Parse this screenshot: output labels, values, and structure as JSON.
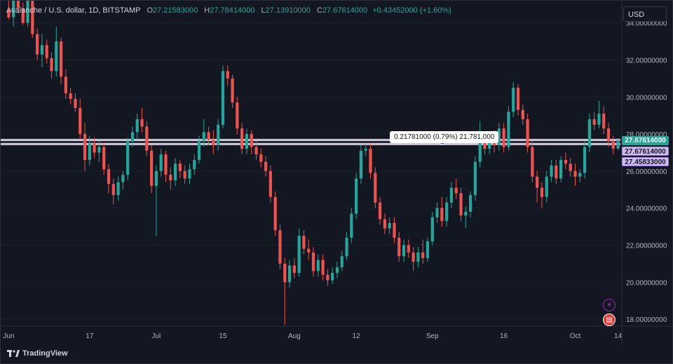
{
  "legend": {
    "symbol": "Avalanche / U.S. dollar, 1D, BITSTAMP",
    "open_label": "O",
    "open": "27.21583000",
    "high_label": "H",
    "high": "27.78414000",
    "low_label": "L",
    "low": "27.13910000",
    "close_label": "C",
    "close": "27.67614000",
    "change": "+0.43452000 (+1.60%)"
  },
  "currency": "USD",
  "price_tags": {
    "last": "27.67614000",
    "line_a": "27.67614000",
    "line_b": "27.45833000"
  },
  "measure_label": "0.21781000 (0.79%) 21,781,000",
  "branding": "TradingView",
  "colors": {
    "up": "#26a69a",
    "down": "#ef5350",
    "line": "#b39ddb",
    "background": "#131722"
  },
  "icons": [
    "tradingview-logo-icon",
    "flash-icon",
    "us-flag-icon"
  ],
  "chart_data": {
    "type": "candlestick",
    "x_ticks": [
      "Jun",
      "17",
      "Jul",
      "15",
      "Aug",
      "12",
      "Sep",
      "16",
      "Oct",
      "14"
    ],
    "y_ticks": [
      "34.00000000",
      "32.00000000",
      "30.00000000",
      "28.00000000",
      "26.00000000",
      "24.00000000",
      "22.00000000",
      "20.00000000",
      "18.00000000"
    ],
    "y_range": [
      17.7,
      35.2
    ],
    "horizontal_lines": [
      27.67614,
      27.45833
    ],
    "candles": [
      {
        "o": 34.7,
        "h": 36.2,
        "l": 34.2,
        "c": 34.3
      },
      {
        "o": 34.3,
        "h": 35.5,
        "l": 33.8,
        "c": 35.2
      },
      {
        "o": 35.2,
        "h": 36.0,
        "l": 34.5,
        "c": 34.8
      },
      {
        "o": 34.8,
        "h": 35.1,
        "l": 33.9,
        "c": 34.0
      },
      {
        "o": 34.0,
        "h": 35.4,
        "l": 33.8,
        "c": 35.3
      },
      {
        "o": 35.3,
        "h": 35.6,
        "l": 33.2,
        "c": 33.4
      },
      {
        "o": 33.4,
        "h": 33.7,
        "l": 32.0,
        "c": 32.3
      },
      {
        "o": 32.3,
        "h": 33.4,
        "l": 31.6,
        "c": 32.8
      },
      {
        "o": 32.8,
        "h": 33.1,
        "l": 31.8,
        "c": 32.1
      },
      {
        "o": 32.1,
        "h": 32.4,
        "l": 31.0,
        "c": 31.4
      },
      {
        "o": 31.4,
        "h": 33.8,
        "l": 31.1,
        "c": 33.0
      },
      {
        "o": 33.0,
        "h": 33.2,
        "l": 30.7,
        "c": 31.1
      },
      {
        "o": 31.1,
        "h": 31.5,
        "l": 29.9,
        "c": 30.2
      },
      {
        "o": 30.2,
        "h": 30.5,
        "l": 29.6,
        "c": 29.9
      },
      {
        "o": 29.9,
        "h": 30.2,
        "l": 29.2,
        "c": 29.4
      },
      {
        "o": 29.4,
        "h": 29.9,
        "l": 27.7,
        "c": 28.0
      },
      {
        "o": 28.0,
        "h": 28.6,
        "l": 26.0,
        "c": 26.6
      },
      {
        "o": 26.6,
        "h": 27.9,
        "l": 26.3,
        "c": 27.5
      },
      {
        "o": 27.5,
        "h": 27.8,
        "l": 26.7,
        "c": 27.0
      },
      {
        "o": 27.0,
        "h": 27.6,
        "l": 26.5,
        "c": 27.3
      },
      {
        "o": 27.3,
        "h": 27.5,
        "l": 25.8,
        "c": 26.1
      },
      {
        "o": 26.1,
        "h": 26.4,
        "l": 24.8,
        "c": 25.3
      },
      {
        "o": 25.3,
        "h": 25.6,
        "l": 24.2,
        "c": 24.7
      },
      {
        "o": 24.7,
        "h": 25.7,
        "l": 24.4,
        "c": 25.4
      },
      {
        "o": 25.4,
        "h": 26.0,
        "l": 25.0,
        "c": 25.8
      },
      {
        "o": 25.8,
        "h": 27.8,
        "l": 25.5,
        "c": 27.6
      },
      {
        "o": 27.6,
        "h": 28.4,
        "l": 27.3,
        "c": 28.1
      },
      {
        "o": 28.1,
        "h": 29.1,
        "l": 27.7,
        "c": 28.8
      },
      {
        "o": 28.8,
        "h": 29.4,
        "l": 28.1,
        "c": 28.4
      },
      {
        "o": 28.4,
        "h": 28.7,
        "l": 26.8,
        "c": 27.1
      },
      {
        "o": 27.1,
        "h": 27.4,
        "l": 24.8,
        "c": 25.2
      },
      {
        "o": 25.2,
        "h": 26.3,
        "l": 22.5,
        "c": 26.0
      },
      {
        "o": 26.0,
        "h": 27.2,
        "l": 25.7,
        "c": 26.9
      },
      {
        "o": 26.9,
        "h": 27.1,
        "l": 25.4,
        "c": 25.8
      },
      {
        "o": 25.8,
        "h": 26.2,
        "l": 25.0,
        "c": 25.5
      },
      {
        "o": 25.5,
        "h": 26.7,
        "l": 25.2,
        "c": 26.4
      },
      {
        "o": 26.4,
        "h": 26.6,
        "l": 25.6,
        "c": 26.0
      },
      {
        "o": 26.0,
        "h": 26.3,
        "l": 25.3,
        "c": 25.6
      },
      {
        "o": 25.6,
        "h": 26.4,
        "l": 25.3,
        "c": 26.1
      },
      {
        "o": 26.1,
        "h": 26.9,
        "l": 25.8,
        "c": 26.6
      },
      {
        "o": 26.6,
        "h": 27.9,
        "l": 26.4,
        "c": 27.6
      },
      {
        "o": 27.6,
        "h": 28.8,
        "l": 27.3,
        "c": 28.1
      },
      {
        "o": 28.1,
        "h": 28.4,
        "l": 27.4,
        "c": 27.7
      },
      {
        "o": 27.7,
        "h": 28.2,
        "l": 26.9,
        "c": 27.4
      },
      {
        "o": 27.4,
        "h": 28.8,
        "l": 27.1,
        "c": 28.5
      },
      {
        "o": 28.5,
        "h": 31.7,
        "l": 28.3,
        "c": 31.4
      },
      {
        "o": 31.4,
        "h": 31.7,
        "l": 30.6,
        "c": 31.0
      },
      {
        "o": 31.0,
        "h": 31.2,
        "l": 29.4,
        "c": 29.7
      },
      {
        "o": 29.7,
        "h": 30.0,
        "l": 28.0,
        "c": 28.3
      },
      {
        "o": 28.3,
        "h": 28.6,
        "l": 26.9,
        "c": 27.2
      },
      {
        "o": 27.2,
        "h": 28.3,
        "l": 26.9,
        "c": 28.0
      },
      {
        "o": 28.0,
        "h": 28.2,
        "l": 26.9,
        "c": 27.3
      },
      {
        "o": 27.3,
        "h": 27.6,
        "l": 26.6,
        "c": 26.9
      },
      {
        "o": 26.9,
        "h": 27.2,
        "l": 26.2,
        "c": 26.5
      },
      {
        "o": 26.5,
        "h": 26.8,
        "l": 25.7,
        "c": 26.0
      },
      {
        "o": 26.0,
        "h": 26.3,
        "l": 24.3,
        "c": 24.6
      },
      {
        "o": 24.6,
        "h": 24.9,
        "l": 22.5,
        "c": 22.8
      },
      {
        "o": 22.8,
        "h": 23.1,
        "l": 20.7,
        "c": 21.0
      },
      {
        "o": 21.0,
        "h": 21.3,
        "l": 17.7,
        "c": 20.0
      },
      {
        "o": 20.0,
        "h": 21.2,
        "l": 19.7,
        "c": 20.9
      },
      {
        "o": 20.9,
        "h": 21.3,
        "l": 20.2,
        "c": 20.5
      },
      {
        "o": 20.5,
        "h": 22.9,
        "l": 20.3,
        "c": 22.5
      },
      {
        "o": 22.5,
        "h": 22.8,
        "l": 21.5,
        "c": 21.8
      },
      {
        "o": 21.8,
        "h": 22.3,
        "l": 21.2,
        "c": 21.6
      },
      {
        "o": 21.6,
        "h": 21.9,
        "l": 20.3,
        "c": 20.6
      },
      {
        "o": 20.6,
        "h": 21.5,
        "l": 20.3,
        "c": 21.2
      },
      {
        "o": 21.2,
        "h": 21.5,
        "l": 20.1,
        "c": 20.4
      },
      {
        "o": 20.4,
        "h": 20.7,
        "l": 19.8,
        "c": 20.1
      },
      {
        "o": 20.1,
        "h": 20.8,
        "l": 19.9,
        "c": 20.5
      },
      {
        "o": 20.5,
        "h": 21.1,
        "l": 20.2,
        "c": 20.8
      },
      {
        "o": 20.8,
        "h": 21.7,
        "l": 20.6,
        "c": 21.4
      },
      {
        "o": 21.4,
        "h": 22.7,
        "l": 21.2,
        "c": 22.4
      },
      {
        "o": 22.4,
        "h": 24.0,
        "l": 22.1,
        "c": 23.7
      },
      {
        "o": 23.7,
        "h": 25.9,
        "l": 23.4,
        "c": 25.6
      },
      {
        "o": 25.6,
        "h": 27.4,
        "l": 25.3,
        "c": 27.1
      },
      {
        "o": 27.1,
        "h": 27.5,
        "l": 26.8,
        "c": 27.2
      },
      {
        "o": 27.2,
        "h": 27.5,
        "l": 25.6,
        "c": 25.9
      },
      {
        "o": 25.9,
        "h": 26.2,
        "l": 24.0,
        "c": 24.3
      },
      {
        "o": 24.3,
        "h": 24.6,
        "l": 23.1,
        "c": 23.4
      },
      {
        "o": 23.4,
        "h": 23.7,
        "l": 22.6,
        "c": 22.9
      },
      {
        "o": 22.9,
        "h": 23.5,
        "l": 22.6,
        "c": 23.2
      },
      {
        "o": 23.2,
        "h": 23.5,
        "l": 22.1,
        "c": 22.4
      },
      {
        "o": 22.4,
        "h": 22.7,
        "l": 21.1,
        "c": 21.4
      },
      {
        "o": 21.4,
        "h": 22.3,
        "l": 21.1,
        "c": 22.0
      },
      {
        "o": 22.0,
        "h": 22.3,
        "l": 21.3,
        "c": 21.6
      },
      {
        "o": 21.6,
        "h": 21.9,
        "l": 20.6,
        "c": 21.1
      },
      {
        "o": 21.1,
        "h": 21.9,
        "l": 20.8,
        "c": 21.6
      },
      {
        "o": 21.6,
        "h": 22.3,
        "l": 21.0,
        "c": 21.3
      },
      {
        "o": 21.3,
        "h": 22.4,
        "l": 21.1,
        "c": 22.2
      },
      {
        "o": 22.2,
        "h": 23.8,
        "l": 22.0,
        "c": 23.5
      },
      {
        "o": 23.5,
        "h": 24.3,
        "l": 23.2,
        "c": 24.0
      },
      {
        "o": 24.0,
        "h": 24.6,
        "l": 23.0,
        "c": 23.3
      },
      {
        "o": 23.3,
        "h": 24.6,
        "l": 23.0,
        "c": 24.3
      },
      {
        "o": 24.3,
        "h": 25.4,
        "l": 24.0,
        "c": 25.1
      },
      {
        "o": 25.1,
        "h": 25.6,
        "l": 24.5,
        "c": 24.8
      },
      {
        "o": 24.8,
        "h": 25.1,
        "l": 23.3,
        "c": 23.6
      },
      {
        "o": 23.6,
        "h": 24.1,
        "l": 22.9,
        "c": 23.8
      },
      {
        "o": 23.8,
        "h": 24.9,
        "l": 23.5,
        "c": 24.7
      },
      {
        "o": 24.7,
        "h": 26.8,
        "l": 24.4,
        "c": 26.5
      },
      {
        "o": 26.5,
        "h": 28.7,
        "l": 26.2,
        "c": 27.8
      },
      {
        "o": 27.8,
        "h": 28.1,
        "l": 26.9,
        "c": 27.2
      },
      {
        "o": 27.2,
        "h": 28.1,
        "l": 26.9,
        "c": 27.8
      },
      {
        "o": 27.8,
        "h": 28.2,
        "l": 27.0,
        "c": 27.4
      },
      {
        "o": 27.4,
        "h": 28.6,
        "l": 27.1,
        "c": 28.3
      },
      {
        "o": 28.3,
        "h": 28.6,
        "l": 27.0,
        "c": 27.3
      },
      {
        "o": 27.3,
        "h": 29.5,
        "l": 27.1,
        "c": 29.2
      },
      {
        "o": 29.2,
        "h": 30.8,
        "l": 28.9,
        "c": 30.5
      },
      {
        "o": 30.5,
        "h": 30.7,
        "l": 29.0,
        "c": 29.3
      },
      {
        "o": 29.3,
        "h": 29.6,
        "l": 28.5,
        "c": 28.8
      },
      {
        "o": 28.8,
        "h": 29.1,
        "l": 27.0,
        "c": 27.3
      },
      {
        "o": 27.3,
        "h": 27.6,
        "l": 25.4,
        "c": 25.7
      },
      {
        "o": 25.7,
        "h": 26.0,
        "l": 24.3,
        "c": 25.1
      },
      {
        "o": 25.1,
        "h": 25.4,
        "l": 24.0,
        "c": 24.6
      },
      {
        "o": 24.6,
        "h": 26.0,
        "l": 24.3,
        "c": 25.7
      },
      {
        "o": 25.7,
        "h": 26.6,
        "l": 25.4,
        "c": 26.3
      },
      {
        "o": 26.3,
        "h": 26.6,
        "l": 25.3,
        "c": 25.6
      },
      {
        "o": 25.6,
        "h": 26.8,
        "l": 25.4,
        "c": 26.6
      },
      {
        "o": 26.6,
        "h": 27.0,
        "l": 26.1,
        "c": 26.4
      },
      {
        "o": 26.4,
        "h": 26.7,
        "l": 25.7,
        "c": 26.0
      },
      {
        "o": 26.0,
        "h": 26.4,
        "l": 25.2,
        "c": 25.7
      },
      {
        "o": 25.7,
        "h": 26.1,
        "l": 25.4,
        "c": 25.9
      },
      {
        "o": 25.9,
        "h": 27.6,
        "l": 25.6,
        "c": 27.3
      },
      {
        "o": 27.3,
        "h": 29.1,
        "l": 27.0,
        "c": 28.8
      },
      {
        "o": 28.8,
        "h": 29.2,
        "l": 28.2,
        "c": 28.5
      },
      {
        "o": 28.5,
        "h": 29.8,
        "l": 28.3,
        "c": 29.1
      },
      {
        "o": 29.1,
        "h": 29.5,
        "l": 28.0,
        "c": 28.3
      },
      {
        "o": 28.3,
        "h": 28.6,
        "l": 27.3,
        "c": 27.6
      },
      {
        "o": 27.6,
        "h": 27.9,
        "l": 26.9,
        "c": 27.2
      },
      {
        "o": 27.2158,
        "h": 27.78414,
        "l": 27.1391,
        "c": 27.67614
      }
    ]
  }
}
